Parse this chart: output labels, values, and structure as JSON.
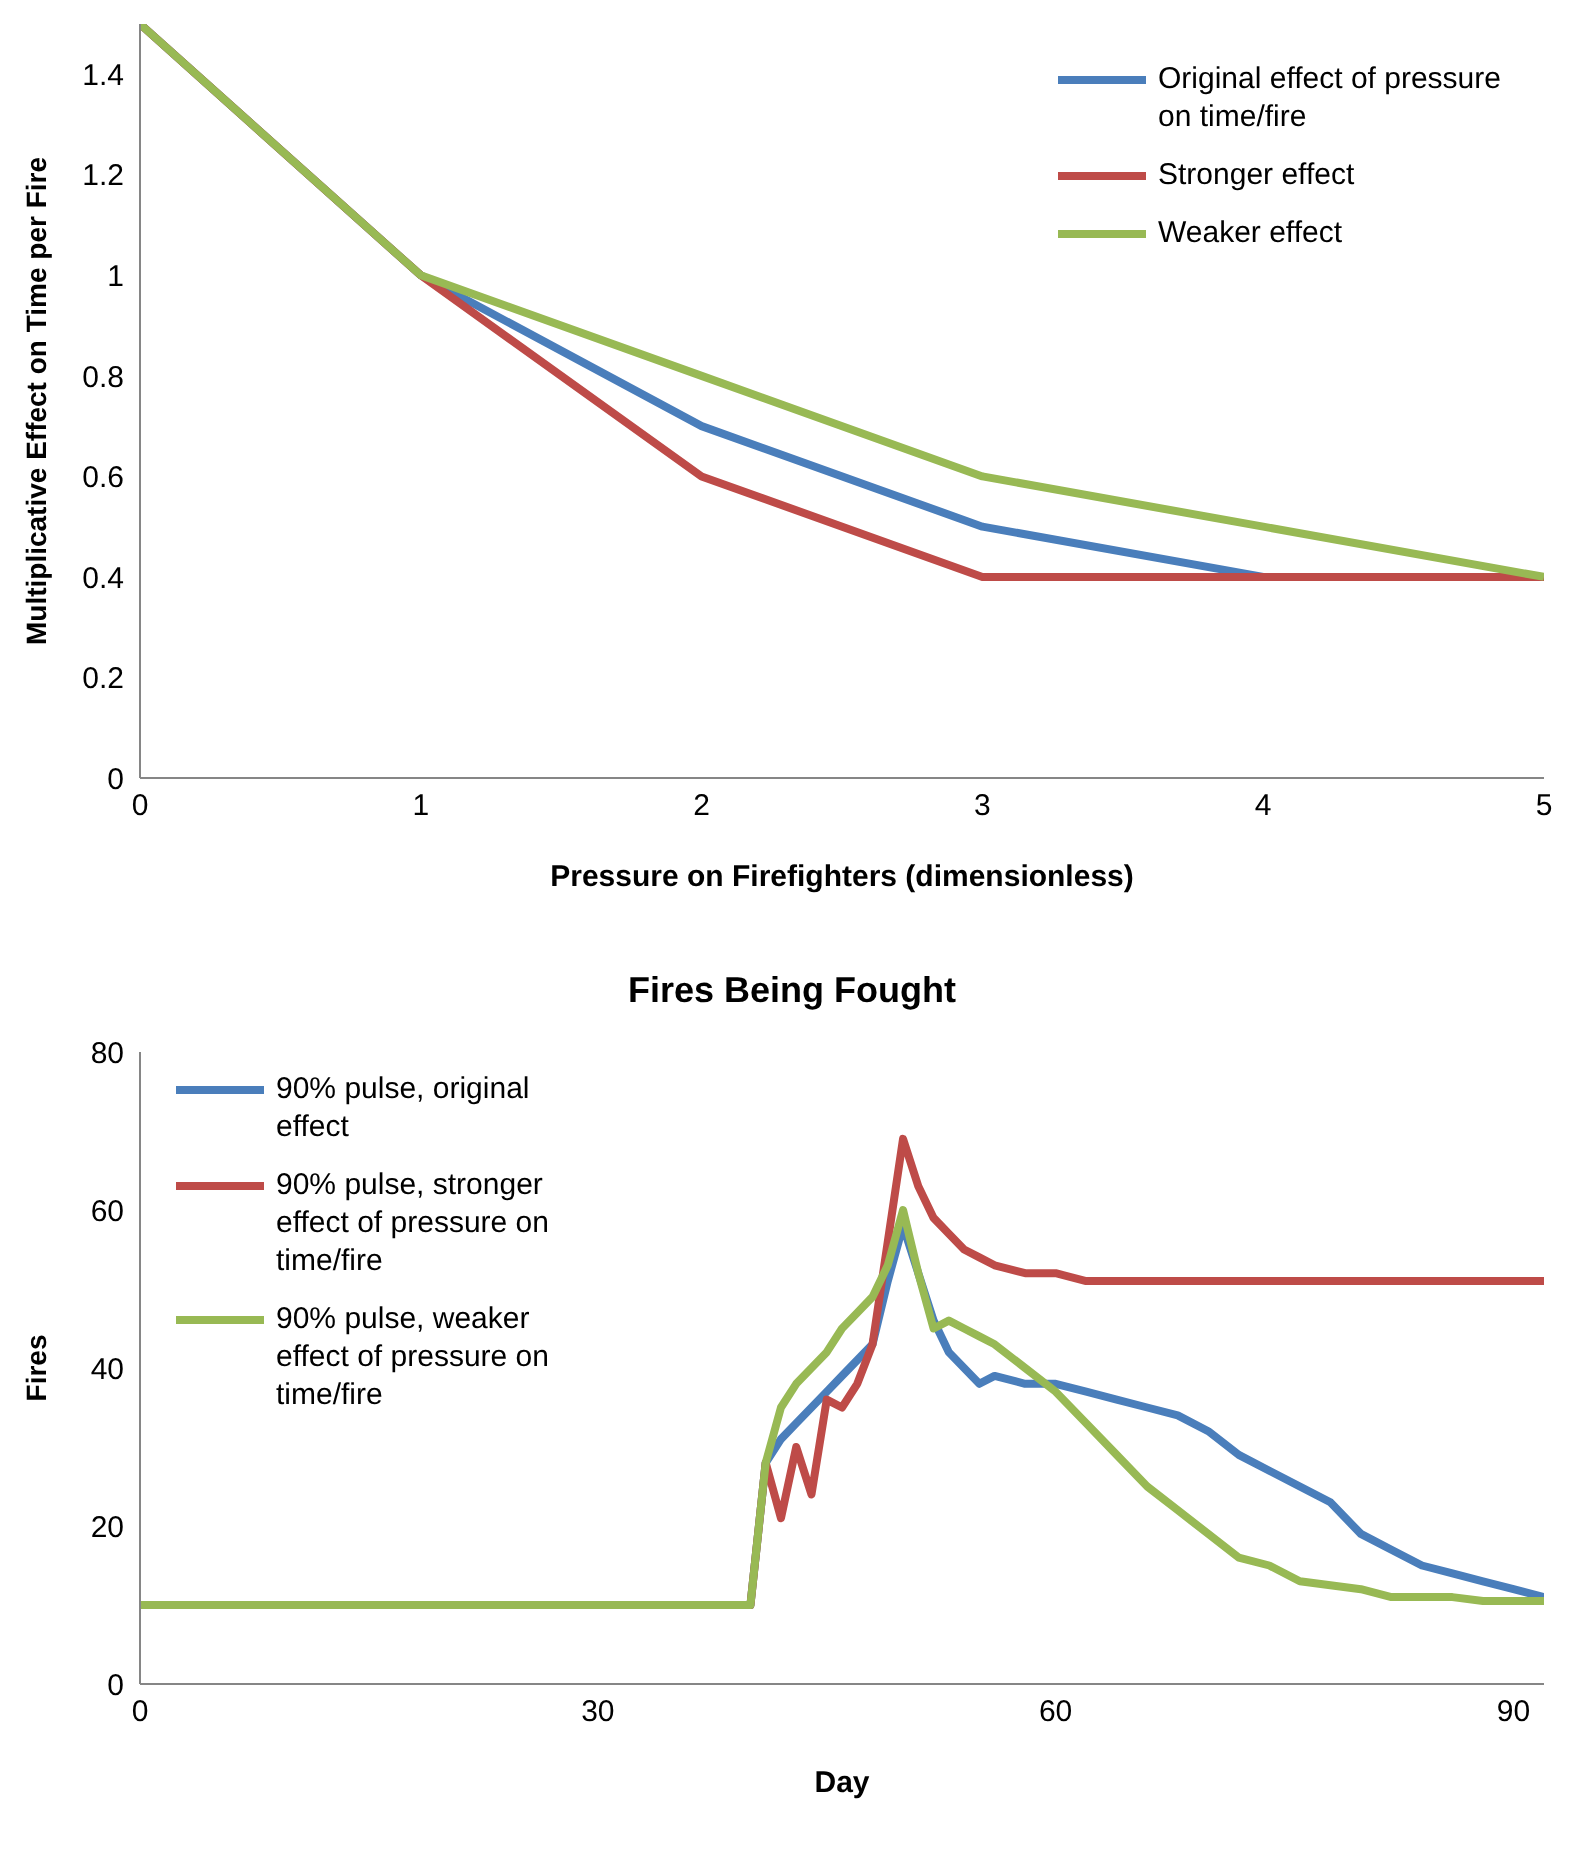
{
  "chart_data": [
    {
      "type": "line",
      "xlabel": "Pressure on Firefighters (dimensionless)",
      "ylabel": "Multiplicative Effect on Time per Fire",
      "x": [
        0,
        1,
        2,
        3,
        4,
        5
      ],
      "xlim": [
        0,
        5
      ],
      "xticks": [
        0,
        1,
        2,
        3,
        4,
        5
      ],
      "ylim": [
        0,
        1.5
      ],
      "yticks": [
        0,
        0.2,
        0.4,
        0.6,
        0.8,
        1,
        1.2,
        1.4
      ],
      "legend": "top right",
      "series": [
        {
          "name": "Original effect of pressure on time/fire",
          "color": "#4a7ebb",
          "values": [
            1.5,
            1,
            0.7,
            0.5,
            0.4,
            0.4
          ]
        },
        {
          "name": "Stronger effect",
          "color": "#be4b48",
          "values": [
            1.5,
            1,
            0.6,
            0.4,
            0.4,
            0.4
          ]
        },
        {
          "name": "Weaker effect",
          "color": "#98b954",
          "values": [
            1.5,
            1,
            0.8,
            0.6,
            0.5,
            0.4
          ]
        }
      ]
    },
    {
      "type": "line",
      "title": "Fires Being Fought",
      "xlabel": "Day",
      "ylabel": "Fires",
      "x": [
        0,
        40,
        41,
        42,
        43,
        44,
        45,
        46,
        47,
        48,
        49,
        50,
        51,
        52,
        53,
        54,
        55,
        56,
        58,
        60,
        62,
        64,
        66,
        68,
        70,
        72,
        74,
        76,
        78,
        80,
        82,
        84,
        86,
        88,
        90,
        92
      ],
      "xlim": [
        0,
        92
      ],
      "xticks": [
        0,
        30,
        60,
        90
      ],
      "ylim": [
        0,
        80
      ],
      "yticks": [
        0,
        20,
        40,
        60,
        80
      ],
      "legend": "top left",
      "series": [
        {
          "name": "90% pulse, original effect",
          "color": "#4a7ebb",
          "values": [
            10,
            10,
            28,
            31,
            33,
            35,
            37,
            39,
            41,
            43,
            51,
            58,
            52,
            46,
            42,
            40,
            38,
            39,
            38,
            38,
            37,
            36,
            35,
            34,
            32,
            29,
            27,
            25,
            23,
            19,
            17,
            15,
            14,
            13,
            12,
            11
          ]
        },
        {
          "name": "90% pulse, stronger effect of pressure on time/fire",
          "color": "#be4b48",
          "values": [
            10,
            10,
            28,
            21,
            30,
            24,
            36,
            35,
            38,
            43,
            56,
            69,
            63,
            59,
            57,
            55,
            54,
            53,
            52,
            52,
            51,
            51,
            51,
            51,
            51,
            51,
            51,
            51,
            51,
            51,
            51,
            51,
            51,
            51,
            51,
            51
          ]
        },
        {
          "name": "90% pulse, weaker effect of pressure on time/fire",
          "color": "#98b954",
          "values": [
            10,
            10,
            28,
            35,
            38,
            40,
            42,
            45,
            47,
            49,
            53,
            60,
            52,
            45,
            46,
            45,
            44,
            43,
            40,
            37,
            33,
            29,
            25,
            22,
            19,
            16,
            15,
            13,
            12.5,
            12,
            11,
            11,
            11,
            10.5,
            10.5,
            10.5
          ]
        }
      ]
    }
  ]
}
